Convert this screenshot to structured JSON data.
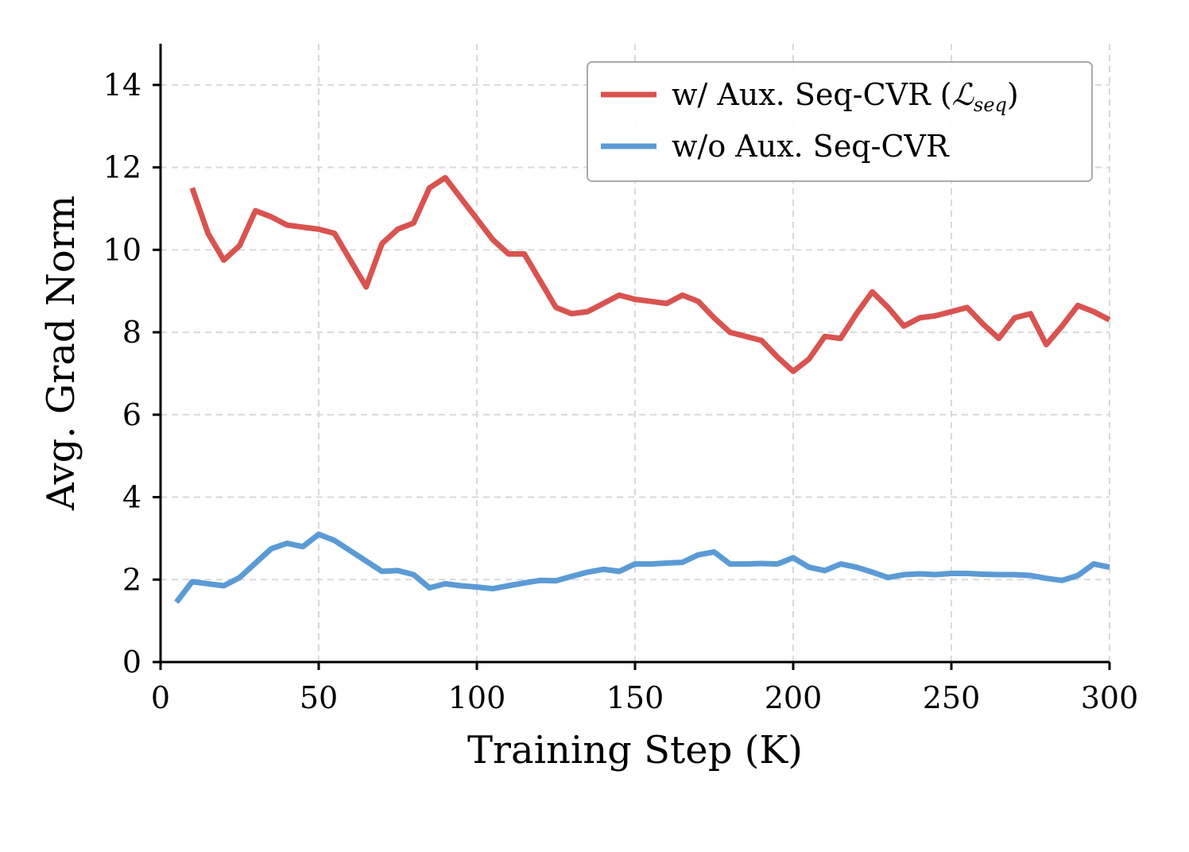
{
  "chart_data": {
    "type": "line",
    "xlabel": "Training Step (K)",
    "ylabel": "Avg. Grad Norm",
    "xlim": [
      0,
      300
    ],
    "ylim": [
      0,
      15
    ],
    "xticks": [
      0,
      50,
      100,
      150,
      200,
      250,
      300
    ],
    "yticks": [
      0,
      2,
      4,
      6,
      8,
      10,
      12,
      14
    ],
    "grid": true,
    "legend_position": "top-right",
    "series": [
      {
        "name": "w/ Aux. Seq-CVR (𝓛seq)",
        "legend_main": "w/ Aux. Seq-CVR (",
        "legend_math": "ℒ",
        "legend_sub": "seq",
        "legend_end": ")",
        "color": "#d9534f",
        "x": [
          10,
          15,
          20,
          25,
          30,
          35,
          40,
          45,
          50,
          55,
          60,
          65,
          70,
          75,
          80,
          85,
          90,
          95,
          100,
          105,
          110,
          115,
          120,
          125,
          130,
          135,
          140,
          145,
          150,
          155,
          160,
          165,
          170,
          175,
          180,
          185,
          190,
          195,
          200,
          205,
          210,
          215,
          220,
          225,
          230,
          235,
          240,
          245,
          250,
          255,
          260,
          265,
          270,
          275,
          280,
          285,
          290,
          295,
          300
        ],
        "y": [
          11.5,
          10.4,
          9.75,
          10.1,
          10.95,
          10.8,
          10.6,
          10.55,
          10.5,
          10.4,
          9.75,
          9.1,
          10.15,
          10.5,
          10.65,
          11.5,
          11.75,
          11.25,
          10.75,
          10.25,
          9.9,
          9.9,
          9.25,
          8.6,
          8.45,
          8.5,
          8.7,
          8.9,
          8.8,
          8.75,
          8.7,
          8.9,
          8.75,
          8.35,
          8.0,
          7.9,
          7.8,
          7.4,
          7.05,
          7.35,
          7.9,
          7.85,
          8.45,
          8.98,
          8.6,
          8.15,
          8.35,
          8.4,
          8.5,
          8.6,
          8.2,
          7.85,
          8.35,
          8.45,
          7.7,
          8.15,
          8.65,
          8.5,
          8.3
        ]
      },
      {
        "name": "w/o Aux. Seq-CVR",
        "color": "#5b9bd5",
        "x": [
          5,
          10,
          15,
          20,
          25,
          30,
          35,
          40,
          45,
          50,
          55,
          60,
          65,
          70,
          75,
          80,
          85,
          90,
          95,
          100,
          105,
          110,
          115,
          120,
          125,
          130,
          135,
          140,
          145,
          150,
          155,
          160,
          165,
          170,
          175,
          180,
          185,
          190,
          195,
          200,
          205,
          210,
          215,
          220,
          225,
          230,
          235,
          240,
          245,
          250,
          255,
          260,
          265,
          270,
          275,
          280,
          285,
          290,
          295,
          300
        ],
        "y": [
          1.45,
          1.95,
          1.9,
          1.85,
          2.05,
          2.4,
          2.75,
          2.88,
          2.8,
          3.1,
          2.95,
          2.7,
          2.45,
          2.2,
          2.22,
          2.12,
          1.8,
          1.9,
          1.85,
          1.82,
          1.78,
          1.85,
          1.92,
          1.98,
          1.97,
          2.08,
          2.18,
          2.25,
          2.2,
          2.38,
          2.38,
          2.4,
          2.42,
          2.6,
          2.67,
          2.38,
          2.38,
          2.39,
          2.38,
          2.53,
          2.3,
          2.22,
          2.38,
          2.3,
          2.18,
          2.05,
          2.12,
          2.14,
          2.12,
          2.15,
          2.15,
          2.13,
          2.12,
          2.12,
          2.1,
          2.03,
          1.98,
          2.1,
          2.38,
          2.3
        ]
      }
    ]
  }
}
